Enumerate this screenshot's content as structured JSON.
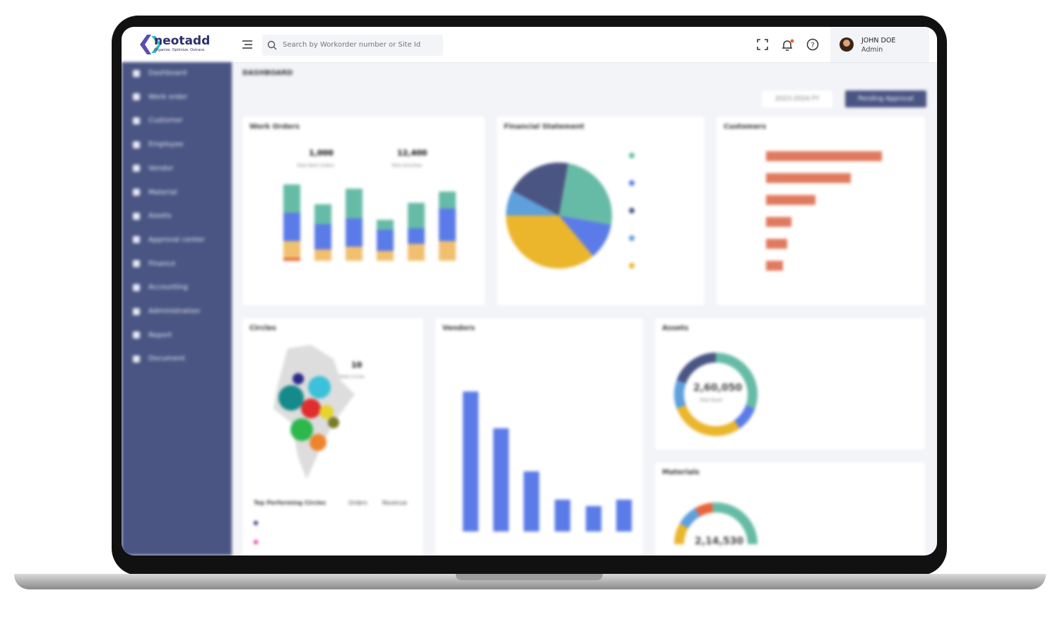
{
  "header": {
    "brand": "neotadd",
    "tagline": "Organize. Optimize. Outrace.",
    "search_placeholder": "Search by Workorder number or Site Id",
    "user_name": "JOHN DOE",
    "user_role": "Admin"
  },
  "sidebar": {
    "items": [
      "Dashboard",
      "Work order",
      "Customer",
      "Employee",
      "Vendor",
      "Material",
      "Assets",
      "Approval center",
      "Finance",
      "Accounting",
      "Administration",
      "Report",
      "Document"
    ]
  },
  "page": {
    "title": "DASHBOARD",
    "period": "2023-2024 FY",
    "action": "Pending Approval"
  },
  "cards": {
    "work_orders": {
      "title": "Work Orders",
      "total_orders": "1,000",
      "total_orders_label": "Total Work Orders",
      "total_activities": "12,400",
      "total_activities_label": "Total Activities"
    },
    "financial": {
      "title": "Financial Statement"
    },
    "customers": {
      "title": "Customers"
    },
    "circles": {
      "title": "Circles",
      "count": "10",
      "count_label": "Total Circles",
      "table_title": "Top Performing Circles",
      "col_orders": "Orders",
      "col_revenue": "Revenue"
    },
    "vendors": {
      "title": "Vendors"
    },
    "assets": {
      "title": "Assets",
      "total": "2,60,050",
      "total_label": "Total Asset"
    },
    "materials": {
      "title": "Materials",
      "total": "2,14,530"
    }
  }
}
